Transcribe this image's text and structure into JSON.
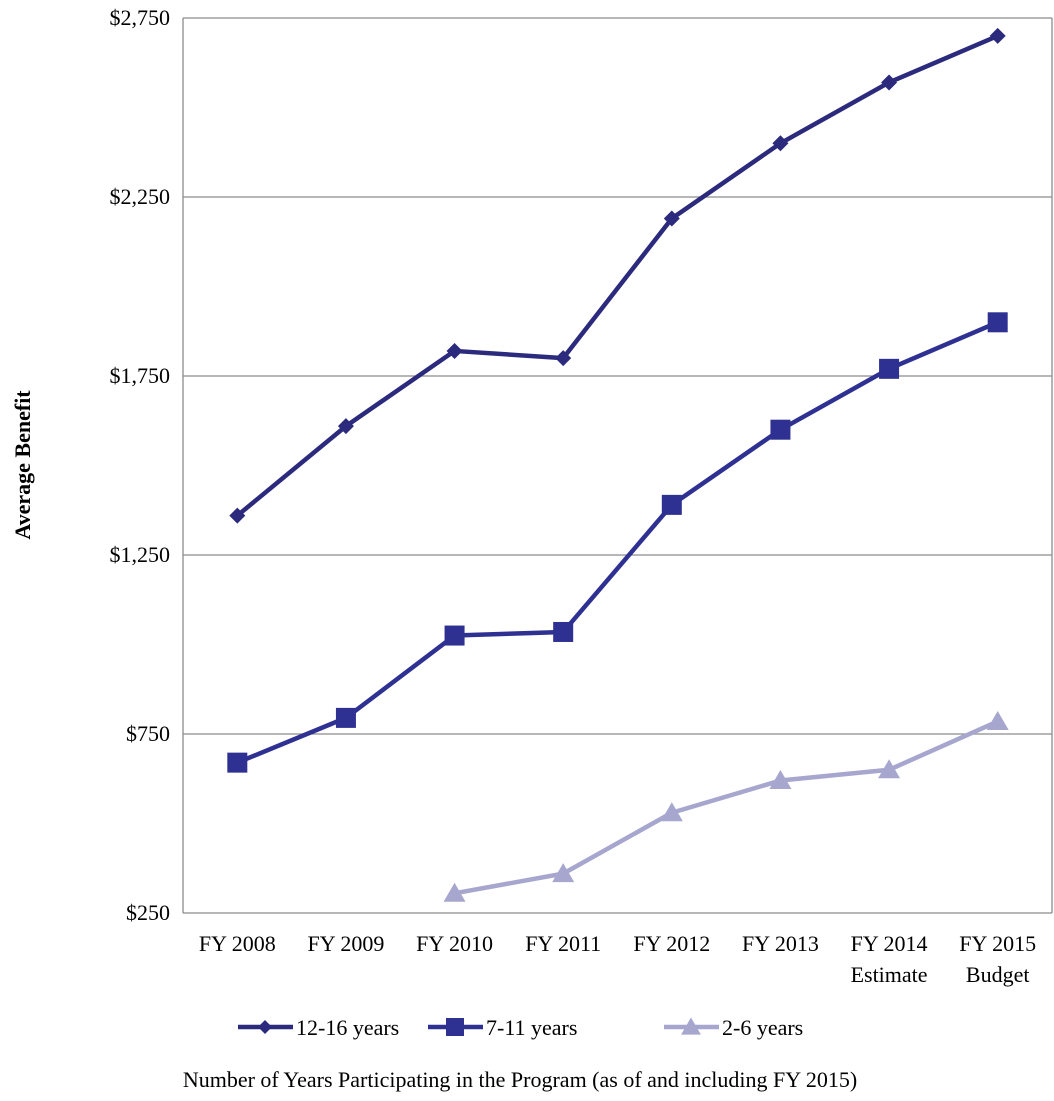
{
  "chart_data": {
    "type": "line",
    "title": "",
    "ylabel": "Average Benefit",
    "xlabel": "Number of Years Participating in the Program (as of and including FY 2015)",
    "ylim": [
      250,
      2750
    ],
    "yticks": [
      250,
      750,
      1250,
      1750,
      2250,
      2750
    ],
    "ytick_labels": [
      "$250",
      "$750",
      "$1,250",
      "$1,750",
      "$2,250",
      "$2,750"
    ],
    "categories": [
      [
        "FY 2008"
      ],
      [
        "FY 2009"
      ],
      [
        "FY 2010"
      ],
      [
        "FY 2011"
      ],
      [
        "FY 2012"
      ],
      [
        "FY 2013"
      ],
      [
        "FY 2014",
        "Estimate"
      ],
      [
        "FY 2015",
        "Budget"
      ]
    ],
    "grid": "horizontal",
    "legend_position": "bottom",
    "series": [
      {
        "name": "12-16 years",
        "marker": "diamond",
        "color": "#2B2A7C",
        "values": [
          1360,
          1610,
          1820,
          1800,
          2190,
          2400,
          2570,
          2700
        ]
      },
      {
        "name": "7-11 years",
        "marker": "square",
        "color": "#2E3192",
        "values": [
          670,
          795,
          1025,
          1035,
          1390,
          1600,
          1770,
          1900
        ]
      },
      {
        "name": "2-6 years",
        "marker": "triangle",
        "color": "#A6A6CF",
        "values": [
          null,
          null,
          305,
          360,
          530,
          620,
          650,
          785
        ]
      }
    ]
  }
}
